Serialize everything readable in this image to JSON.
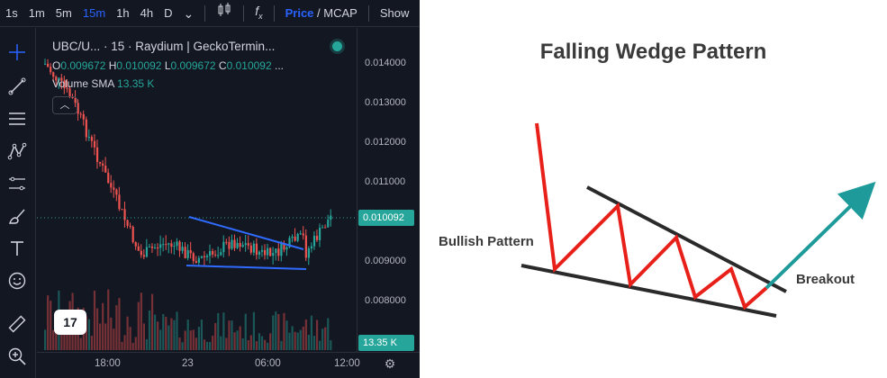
{
  "toolbar": {
    "timeframes": [
      "1s",
      "1m",
      "5m",
      "15m",
      "1h",
      "4h",
      "D"
    ],
    "active_timeframe": "15m",
    "more_icon": "chevron-down-icon",
    "candles_icon": "candlestick-icon",
    "indicators_icon": "fx-icon",
    "price_label": "Price",
    "slash": "/",
    "mcap_label": "MCAP",
    "show_label": "Show"
  },
  "sidebar": {
    "tools": [
      "crosshair-icon",
      "trendline-icon",
      "fib-lines-icon",
      "pattern-icon",
      "measure-icon",
      "brush-icon",
      "text-icon",
      "emoji-icon",
      "ruler-icon",
      "zoom-in-icon"
    ]
  },
  "legend": {
    "title": "UBC/U... · 15 · Raydium | GeckoTermin...",
    "open_label": "O",
    "open": "0.009672",
    "high_label": "H",
    "high": "0.010092",
    "low_label": "L",
    "low": "0.009672",
    "close_label": "C",
    "close": "0.010092",
    "more": "...",
    "volume_label": "Volume SMA",
    "volume_value": "13.35 K",
    "collapse_icon": "chevron-up-icon"
  },
  "price_axis": {
    "ticks": [
      "0.014000",
      "0.013000",
      "0.012000",
      "0.011000",
      "0.009000",
      "0.008000"
    ],
    "current_price": "0.010092",
    "volume_badge": "13.35 K",
    "up_color": "#26a69a",
    "down_color": "#ef5350"
  },
  "time_axis": {
    "labels": [
      "18:00",
      "23",
      "06:00",
      "12:00"
    ],
    "settings_icon": "gear-icon"
  },
  "logo": "17",
  "diagram": {
    "title": "Falling Wedge Pattern",
    "bullish_label": "Bullish Pattern",
    "breakout_label": "Breakout",
    "zigzag_color": "#e8201a",
    "trend_color": "#2a2a2a",
    "breakout_color": "#1e9a9a"
  }
}
